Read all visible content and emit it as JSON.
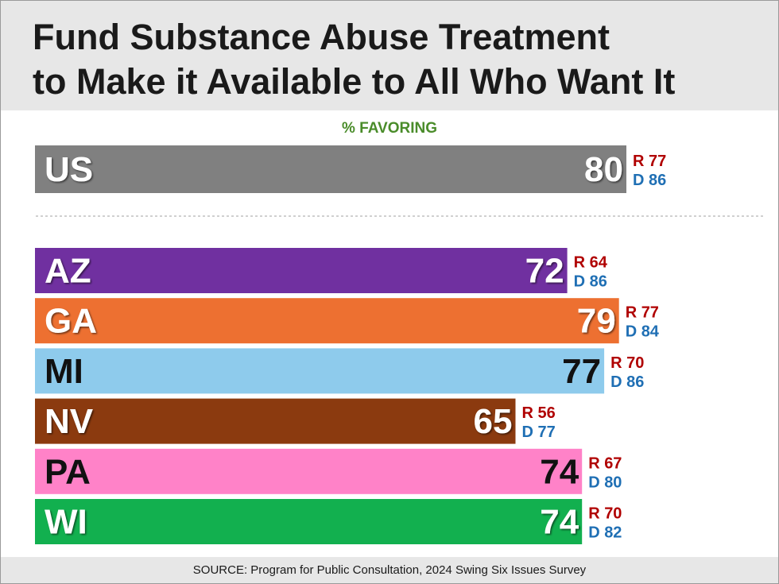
{
  "header": {
    "title_line1": "Fund Substance Abuse Treatment",
    "title_line2": "to Make it Available to All Who Want It"
  },
  "subhead": "% FAVORING",
  "footer": {
    "source": "SOURCE: Program for Public Consultation, 2024 Swing Six Issues Survey"
  },
  "colors": {
    "US": "#808080",
    "AZ": "#7030a0",
    "GA": "#ed7031",
    "MI": "#8ecbec",
    "NV": "#8b3a0f",
    "PA": "#ff82c8",
    "WI": "#12b04f",
    "republican": "#b00000",
    "democrat": "#1f6fb4",
    "favoring": "#4a8c2a"
  },
  "chart_data": {
    "type": "bar",
    "orientation": "horizontal",
    "title": "Fund Substance Abuse Treatment to Make it Available to All Who Want It",
    "subtitle": "% FAVORING",
    "national": {
      "label": "US",
      "value": 80,
      "r_label": "R 77",
      "d_label": "D 86"
    },
    "categories": [
      "AZ",
      "GA",
      "MI",
      "NV",
      "PA",
      "WI"
    ],
    "values": [
      72,
      79,
      77,
      65,
      74,
      74
    ],
    "r_labels": [
      "R 64",
      "R 77",
      "R 70",
      "R 56",
      "R 67",
      "R 70"
    ],
    "d_labels": [
      "D 86",
      "D 84",
      "D 86",
      "D 77",
      "D 80",
      "D 82"
    ],
    "dark_text_on": [
      "MI",
      "PA"
    ],
    "xlim": [
      0,
      100
    ]
  }
}
